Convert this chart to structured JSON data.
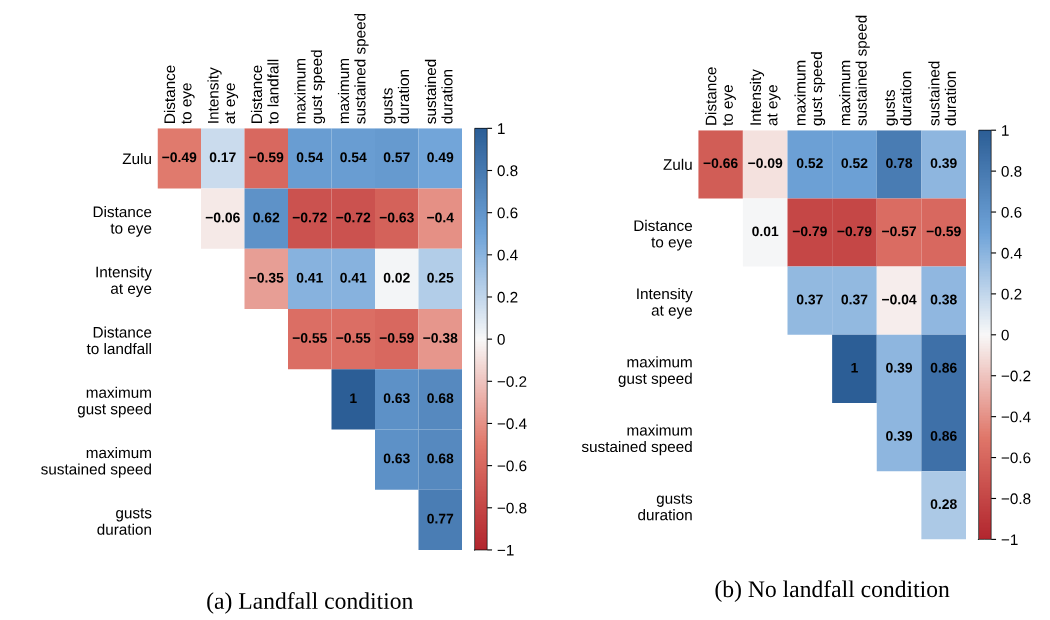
{
  "chart_data": [
    {
      "type": "heatmap",
      "title": "(a) Landfall condition",
      "categories": [
        "Distance\nto eye",
        "Intensity\nat eye",
        "Distance\nto landfall",
        "maximum\ngust speed",
        "maximum\nsustained speed",
        "gusts\nduration",
        "sustained\nduration"
      ],
      "y_categories": [
        "Zulu",
        "Distance\nto eye",
        "Intensity\nat eye",
        "Distance\nto landfall",
        "maximum\ngust speed",
        "maximum\nsustained speed",
        "gusts\nduration"
      ],
      "cells": [
        [
          -0.49,
          0.17,
          -0.59,
          0.54,
          0.54,
          0.57,
          0.49
        ],
        [
          null,
          -0.06,
          0.62,
          -0.72,
          -0.72,
          -0.63,
          -0.4
        ],
        [
          null,
          null,
          -0.35,
          0.41,
          0.41,
          0.02,
          0.25
        ],
        [
          null,
          null,
          null,
          -0.55,
          -0.55,
          -0.59,
          -0.38
        ],
        [
          null,
          null,
          null,
          null,
          1,
          0.63,
          0.68
        ],
        [
          null,
          null,
          null,
          null,
          null,
          0.63,
          0.68
        ],
        [
          null,
          null,
          null,
          null,
          null,
          null,
          0.77
        ]
      ],
      "cell_labels": [
        [
          "−0.49",
          "0.17",
          "−0.59",
          "0.54",
          "0.54",
          "0.57",
          "0.49"
        ],
        [
          null,
          "−0.06",
          "0.62",
          "−0.72",
          "−0.72",
          "−0.63",
          "−0.4"
        ],
        [
          null,
          null,
          "−0.35",
          "0.41",
          "0.41",
          "0.02",
          "0.25"
        ],
        [
          null,
          null,
          null,
          "−0.55",
          "−0.55",
          "−0.59",
          "−0.38"
        ],
        [
          null,
          null,
          null,
          null,
          "1",
          "0.63",
          "0.68"
        ],
        [
          null,
          null,
          null,
          null,
          null,
          "0.63",
          "0.68"
        ],
        [
          null,
          null,
          null,
          null,
          null,
          null,
          "0.77"
        ]
      ],
      "clim": [
        -1,
        1
      ],
      "cticks": [
        {
          "value": -1,
          "label": "−1"
        },
        {
          "value": -0.8,
          "label": "−0.8"
        },
        {
          "value": -0.6,
          "label": "−0.6"
        },
        {
          "value": -0.4,
          "label": "−0.4"
        },
        {
          "value": -0.2,
          "label": "−0.2"
        },
        0,
        0.2,
        0.4,
        0.6,
        0.8,
        1
      ]
    },
    {
      "type": "heatmap",
      "title": "(b) No landfall condition",
      "categories": [
        "Distance\nto eye",
        "Intensity\nat eye",
        "maximum\ngust speed",
        "maximum\nsustained speed",
        "gusts\nduration",
        "sustained\nduration"
      ],
      "y_categories": [
        "Zulu",
        "Distance\nto eye",
        "Intensity\nat eye",
        "maximum\ngust speed",
        "maximum\nsustained speed",
        "gusts\nduration"
      ],
      "cells": [
        [
          -0.66,
          -0.09,
          0.52,
          0.52,
          0.78,
          0.39
        ],
        [
          null,
          0.01,
          -0.79,
          -0.79,
          -0.57,
          -0.59
        ],
        [
          null,
          null,
          0.37,
          0.37,
          -0.04,
          0.38
        ],
        [
          null,
          null,
          null,
          1,
          0.39,
          0.86
        ],
        [
          null,
          null,
          null,
          null,
          0.39,
          0.86
        ],
        [
          null,
          null,
          null,
          null,
          null,
          0.28
        ]
      ],
      "cell_labels": [
        [
          "−0.66",
          "−0.09",
          "0.52",
          "0.52",
          "0.78",
          "0.39"
        ],
        [
          null,
          "0.01",
          "−0.79",
          "−0.79",
          "−0.57",
          "−0.59"
        ],
        [
          null,
          null,
          "0.37",
          "0.37",
          "−0.04",
          "0.38"
        ],
        [
          null,
          null,
          null,
          "1",
          "0.39",
          "0.86"
        ],
        [
          null,
          null,
          null,
          null,
          "0.39",
          "0.86"
        ],
        [
          null,
          null,
          null,
          null,
          null,
          "0.28"
        ]
      ],
      "clim": [
        -1,
        1
      ],
      "cticks": [
        {
          "value": -1,
          "label": "−1"
        },
        {
          "value": -0.8,
          "label": "−0.8"
        },
        {
          "value": -0.6,
          "label": "−0.6"
        },
        {
          "value": -0.4,
          "label": "−0.4"
        },
        {
          "value": -0.2,
          "label": "−0.2"
        },
        0,
        0.2,
        0.4,
        0.6,
        0.8,
        1
      ]
    }
  ]
}
